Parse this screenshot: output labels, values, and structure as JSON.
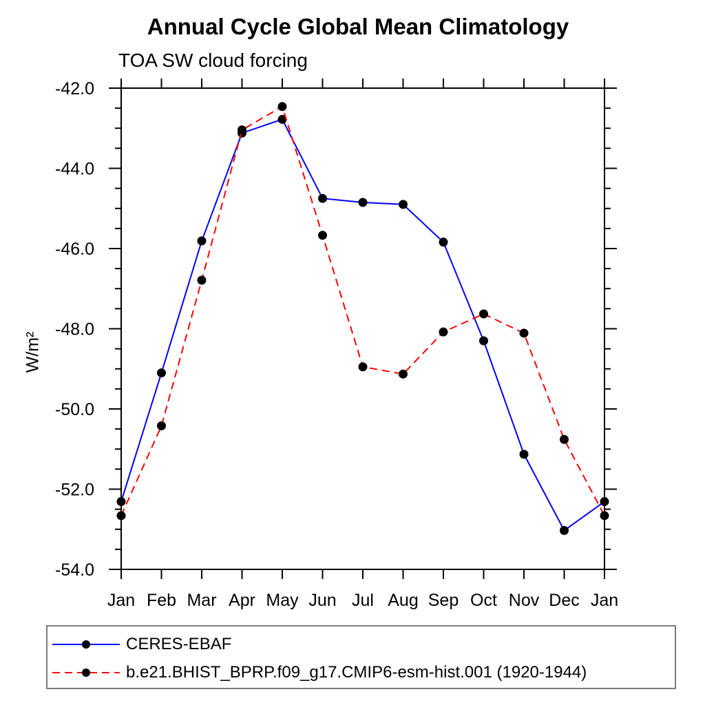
{
  "chart_data": {
    "type": "line",
    "title": "Annual Cycle Global Mean Climatology",
    "subtitle": "TOA SW cloud forcing",
    "ylabel": "W/m²",
    "x_categories": [
      "Jan",
      "Feb",
      "Mar",
      "Apr",
      "May",
      "Jun",
      "Jul",
      "Aug",
      "Sep",
      "Oct",
      "Nov",
      "Dec",
      "Jan"
    ],
    "ylim": [
      -54.0,
      -42.0
    ],
    "y_major_ticks": [
      -42.0,
      -44.0,
      -46.0,
      -48.0,
      -50.0,
      -52.0,
      -54.0
    ],
    "y_tick_labels": [
      "-42.0",
      "-44.0",
      "-46.0",
      "-48.0",
      "-50.0",
      "-52.0",
      "-54.0"
    ],
    "y_minor_step": 0.5,
    "grid": "off",
    "frame": "box-with-outward-ticks",
    "legend_position": "bottom-left-box",
    "axis_color": "#000000",
    "marker": {
      "shape": "circle",
      "color": "#000000",
      "radius": 6.5
    },
    "series": [
      {
        "name": "CERES-EBAF",
        "color": "#0000ff",
        "line_style": "solid",
        "values": [
          -52.31,
          -49.1,
          -45.81,
          -43.12,
          -42.78,
          -44.75,
          -44.85,
          -44.9,
          -45.84,
          -48.3,
          -51.13,
          -53.03,
          -52.31
        ]
      },
      {
        "name": "b.e21.BHIST_BPRP.f09_g17.CMIP6-esm-hist.001 (1920-1944)",
        "color": "#ff0000",
        "line_style": "dashed",
        "values": [
          -52.66,
          -50.42,
          -46.79,
          -43.04,
          -42.46,
          -45.67,
          -48.95,
          -49.13,
          -48.08,
          -47.63,
          -48.11,
          -50.76,
          -52.66
        ]
      }
    ]
  }
}
